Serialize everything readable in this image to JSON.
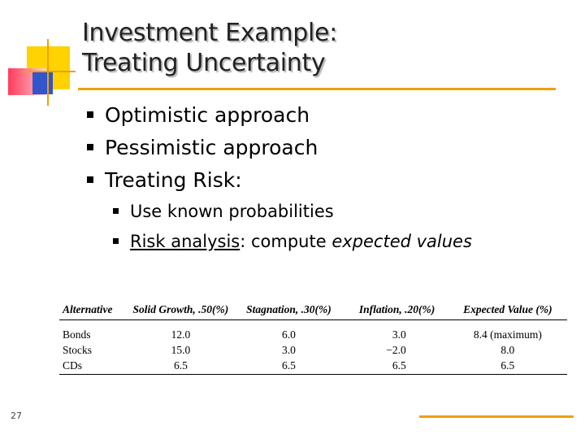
{
  "slide": {
    "title_line1": "Investment Example:",
    "title_line2": "Treating Uncertainty",
    "bullets": [
      "Optimistic approach",
      "Pessimistic approach",
      "Treating Risk:"
    ],
    "sub_bullets": {
      "item1": "Use known probabilities",
      "item2_underlined": "Risk analysis",
      "item2_plain": ": compute ",
      "item2_italic": "expected values"
    },
    "page_number": "27"
  },
  "table": {
    "headers": [
      "Alternative",
      "Solid Growth, .50(%)",
      "Stagnation, .30(%)",
      "Inflation, .20(%)",
      "Expected Value (%)"
    ],
    "rows": [
      [
        "Bonds",
        "12.0",
        "6.0",
        "3.0",
        "8.4 (maximum)"
      ],
      [
        "Stocks",
        "15.0",
        "3.0",
        "−2.0",
        "8.0"
      ],
      [
        "CDs",
        "6.5",
        "6.5",
        "6.5",
        "6.5"
      ]
    ]
  },
  "colors": {
    "accent": "#f0a000",
    "logo_yellow": "#ffd200",
    "logo_red": "#ff3b5c",
    "logo_blue": "#3355cc"
  }
}
